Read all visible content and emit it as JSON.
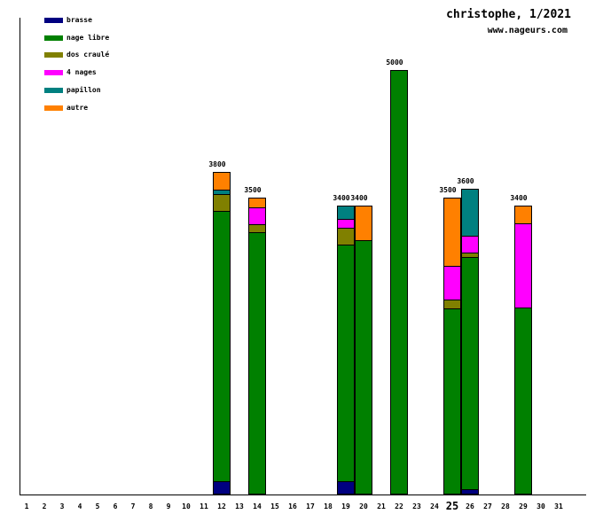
{
  "header": {
    "title": "christophe, 1/2021",
    "website": "www.nageurs.com"
  },
  "legend": {
    "position": "top-left",
    "items": [
      {
        "label": "brasse",
        "color": "#000080"
      },
      {
        "label": "nage libre",
        "color": "#008000"
      },
      {
        "label": "dos craulé",
        "color": "#808000"
      },
      {
        "label": "4 nages",
        "color": "#ff00ff"
      },
      {
        "label": "papillon",
        "color": "#008080"
      },
      {
        "label": "autre",
        "color": "#ff8000"
      }
    ]
  },
  "chart_data": {
    "type": "bar",
    "stacked": true,
    "title": "christophe, 1/2021",
    "subtitle": "www.nageurs.com",
    "unit": "meters (swim distance per day)",
    "grid": false,
    "legend_position": "top-left",
    "x_axis": {
      "label": "day of month",
      "days": [
        "1",
        "2",
        "3",
        "4",
        "5",
        "6",
        "7",
        "8",
        "9",
        "10",
        "11",
        "12",
        "13",
        "14",
        "15",
        "16",
        "17",
        "18",
        "19",
        "20",
        "21",
        "22",
        "23",
        "24",
        "25",
        "26",
        "27",
        "28",
        "29",
        "30",
        "31"
      ],
      "highlighted_day": "25"
    },
    "y_axis": {
      "tick_labels_visible": false,
      "implied_range": [
        0,
        5000
      ]
    },
    "bar_days": [
      12,
      14,
      19,
      20,
      22,
      25,
      26,
      29
    ],
    "totals": [
      3800,
      3500,
      3400,
      3400,
      5000,
      3500,
      3600,
      3400
    ],
    "total_labels": [
      "3800",
      "3500",
      "3400",
      "3400",
      "5000",
      "3500",
      "3600",
      "3400"
    ],
    "series": [
      {
        "name": "brasse",
        "color": "#000080",
        "values": [
          150,
          0,
          150,
          0,
          0,
          0,
          50,
          0
        ]
      },
      {
        "name": "nage libre",
        "color": "#008000",
        "values": [
          3200,
          3100,
          2800,
          3000,
          5000,
          2200,
          2750,
          2200
        ]
      },
      {
        "name": "dos craulé",
        "color": "#808000",
        "values": [
          200,
          100,
          200,
          0,
          0,
          100,
          50,
          0
        ]
      },
      {
        "name": "4 nages",
        "color": "#ff00ff",
        "values": [
          0,
          200,
          100,
          0,
          0,
          400,
          200,
          1000
        ]
      },
      {
        "name": "papillon",
        "color": "#008080",
        "values": [
          50,
          0,
          150,
          0,
          0,
          0,
          550,
          0
        ]
      },
      {
        "name": "autre",
        "color": "#ff8000",
        "values": [
          200,
          100,
          0,
          400,
          0,
          800,
          0,
          200
        ]
      }
    ]
  }
}
